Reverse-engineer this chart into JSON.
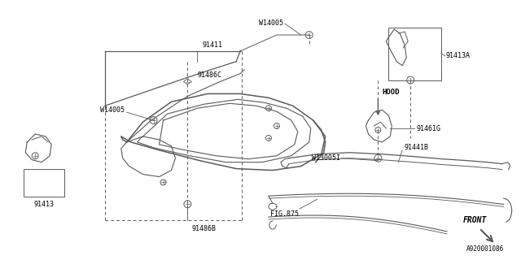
{
  "bg_color": "#ffffff",
  "line_color": "#5a5a5a",
  "text_color": "#000000",
  "fig_width": 6.4,
  "fig_height": 3.2,
  "dpi": 100,
  "labels": {
    "W14005_top": "W14005",
    "91413A": "91413A",
    "91411": "91411",
    "91486C": "91486C",
    "HOOD": "HOOD",
    "W14005_left": "W14005",
    "91461G": "91461G",
    "W13005": "W13005I",
    "91441B": "91441B",
    "91413": "91413",
    "91486B": "91486B",
    "FIG875": "FIG.875",
    "FRONT": "FRONT",
    "part_num": "A920001086"
  }
}
